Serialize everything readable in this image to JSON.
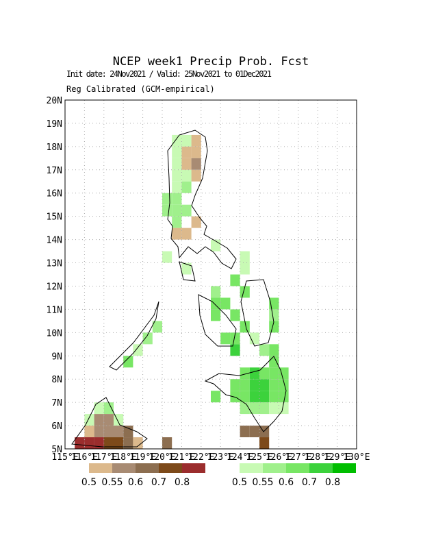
{
  "map": {
    "title": "NCEP week1 Precip Prob. Fcst",
    "subtitle": "Init date: 24Nov2021 / Valid: 25Nov2021 to 01Dec2021",
    "method": "Reg Calibrated (GCM-empirical)",
    "xlim": [
      115,
      130
    ],
    "ylim": [
      5,
      20
    ],
    "xticks": [
      {
        "value": 115,
        "label": "115°E"
      },
      {
        "value": 116,
        "label": "116°E"
      },
      {
        "value": 117,
        "label": "117°E"
      },
      {
        "value": 118,
        "label": "118°E"
      },
      {
        "value": 119,
        "label": "119°E"
      },
      {
        "value": 120,
        "label": "120°E"
      },
      {
        "value": 121,
        "label": "121°E"
      },
      {
        "value": 122,
        "label": "122°E"
      },
      {
        "value": 123,
        "label": "123°E"
      },
      {
        "value": 124,
        "label": "124°E"
      },
      {
        "value": 125,
        "label": "125°E"
      },
      {
        "value": 126,
        "label": "126°E"
      },
      {
        "value": 127,
        "label": "127°E"
      },
      {
        "value": 128,
        "label": "128°E"
      },
      {
        "value": 129,
        "label": "129°E"
      },
      {
        "value": 130,
        "label": "130°E"
      }
    ],
    "yticks": [
      {
        "value": 5,
        "label": "5N"
      },
      {
        "value": 6,
        "label": "6N"
      },
      {
        "value": 7,
        "label": "7N"
      },
      {
        "value": 8,
        "label": "8N"
      },
      {
        "value": 9,
        "label": "9N"
      },
      {
        "value": 10,
        "label": "10N"
      },
      {
        "value": 11,
        "label": "11N"
      },
      {
        "value": 12,
        "label": "12N"
      },
      {
        "value": 13,
        "label": "13N"
      },
      {
        "value": 14,
        "label": "14N"
      },
      {
        "value": 15,
        "label": "15N"
      },
      {
        "value": 16,
        "label": "16N"
      },
      {
        "value": 17,
        "label": "17N"
      },
      {
        "value": 18,
        "label": "18N"
      },
      {
        "value": 19,
        "label": "19N"
      },
      {
        "value": 20,
        "label": "20N"
      }
    ],
    "cell_size": [
      0.5,
      0.5
    ],
    "legend_dry": {
      "levels": [
        0.5,
        0.55,
        0.6,
        0.7,
        0.8
      ],
      "colors": [
        "#dcb98c",
        "#a88b73",
        "#8c6e50",
        "#7d4a1a",
        "#9b2d2d"
      ]
    },
    "legend_wet": {
      "levels": [
        0.5,
        0.55,
        0.6,
        0.7,
        0.8
      ],
      "colors": [
        "#c8fab4",
        "#a0f08c",
        "#78e664",
        "#3cd23c",
        "#00be00"
      ]
    },
    "wet_cells": [
      [
        120.5,
        18,
        0.5
      ],
      [
        121,
        18,
        0.5
      ],
      [
        120.5,
        17.5,
        0.5
      ],
      [
        120.5,
        17,
        0.5
      ],
      [
        121,
        16.5,
        0.5
      ],
      [
        120.5,
        16.5,
        0.5
      ],
      [
        120.5,
        16,
        0.5
      ],
      [
        121,
        16,
        0.55
      ],
      [
        120,
        15.5,
        0.55
      ],
      [
        120.5,
        15.5,
        0.55
      ],
      [
        121,
        15,
        0.55
      ],
      [
        120,
        15,
        0.55
      ],
      [
        120.5,
        15,
        0.55
      ],
      [
        120.5,
        14.5,
        0.55
      ],
      [
        120,
        13,
        0.5
      ],
      [
        121,
        12.5,
        0.5
      ],
      [
        122.5,
        13.5,
        0.5
      ],
      [
        124,
        13,
        0.5
      ],
      [
        124,
        12.5,
        0.5
      ],
      [
        122.5,
        11.5,
        0.55
      ],
      [
        122.5,
        11,
        0.6
      ],
      [
        123,
        11,
        0.6
      ],
      [
        122.5,
        10.5,
        0.6
      ],
      [
        123.5,
        10.5,
        0.6
      ],
      [
        123,
        9.5,
        0.6
      ],
      [
        123.5,
        9.5,
        0.6
      ],
      [
        124,
        10,
        0.6
      ],
      [
        123.5,
        9,
        0.7
      ],
      [
        124.5,
        9.5,
        0.5
      ],
      [
        123.5,
        12,
        0.6
      ],
      [
        124,
        11.5,
        0.6
      ],
      [
        125.5,
        11,
        0.6
      ],
      [
        125.5,
        10.5,
        0.55
      ],
      [
        125.5,
        10,
        0.6
      ],
      [
        125,
        9,
        0.55
      ],
      [
        125.5,
        9,
        0.6
      ],
      [
        125.5,
        8.5,
        0.6
      ],
      [
        124,
        8,
        0.6
      ],
      [
        124.5,
        8,
        0.7
      ],
      [
        125,
        8,
        0.6
      ],
      [
        125.5,
        8,
        0.6
      ],
      [
        126,
        8,
        0.6
      ],
      [
        123.5,
        7.5,
        0.6
      ],
      [
        124,
        7.5,
        0.6
      ],
      [
        124.5,
        7.5,
        0.7
      ],
      [
        125,
        7.5,
        0.7
      ],
      [
        125.5,
        7.5,
        0.6
      ],
      [
        126,
        7.5,
        0.6
      ],
      [
        123.5,
        7,
        0.6
      ],
      [
        124,
        7,
        0.6
      ],
      [
        124.5,
        7,
        0.7
      ],
      [
        125,
        7,
        0.7
      ],
      [
        125.5,
        7,
        0.6
      ],
      [
        126,
        7,
        0.6
      ],
      [
        124.5,
        6.5,
        0.55
      ],
      [
        125,
        6.5,
        0.55
      ],
      [
        125.5,
        6.5,
        0.5
      ],
      [
        126,
        6.5,
        0.5
      ],
      [
        124,
        6.5,
        0.55
      ],
      [
        122.5,
        7,
        0.6
      ],
      [
        119,
        9.5,
        0.55
      ],
      [
        118.5,
        9,
        0.5
      ],
      [
        118,
        8.5,
        0.6
      ],
      [
        119.5,
        10,
        0.55
      ],
      [
        116.5,
        6.5,
        0.5
      ],
      [
        117,
        6.5,
        0.55
      ],
      [
        117.5,
        6,
        0.5
      ],
      [
        116,
        6,
        0.5
      ]
    ],
    "dry_cells": [
      [
        121,
        17.5,
        0.5
      ],
      [
        121.5,
        17.5,
        0.5
      ],
      [
        121,
        17,
        0.5
      ],
      [
        121.5,
        18,
        0.5
      ],
      [
        121.5,
        17,
        0.55
      ],
      [
        121.5,
        16.5,
        0.5
      ],
      [
        121.5,
        14.5,
        0.5
      ],
      [
        121,
        14,
        0.5
      ],
      [
        120.5,
        14,
        0.5
      ],
      [
        124,
        5.5,
        0.6
      ],
      [
        124.5,
        5.5,
        0.6
      ],
      [
        125,
        5.5,
        0.6
      ],
      [
        125,
        5,
        0.7
      ],
      [
        116.5,
        6,
        0.55
      ],
      [
        117,
        6,
        0.55
      ],
      [
        116.5,
        5.5,
        0.55
      ],
      [
        117,
        5.5,
        0.55
      ],
      [
        117.5,
        5.5,
        0.55
      ],
      [
        118,
        5.5,
        0.6
      ],
      [
        116,
        5.5,
        0.5
      ],
      [
        115.5,
        5,
        0.8
      ],
      [
        116,
        5,
        0.8
      ],
      [
        116.5,
        5,
        0.8
      ],
      [
        117,
        5,
        0.7
      ],
      [
        117.5,
        5,
        0.7
      ],
      [
        118,
        5,
        0.6
      ],
      [
        118.5,
        5,
        0.5
      ],
      [
        120,
        5,
        0.6
      ]
    ]
  }
}
